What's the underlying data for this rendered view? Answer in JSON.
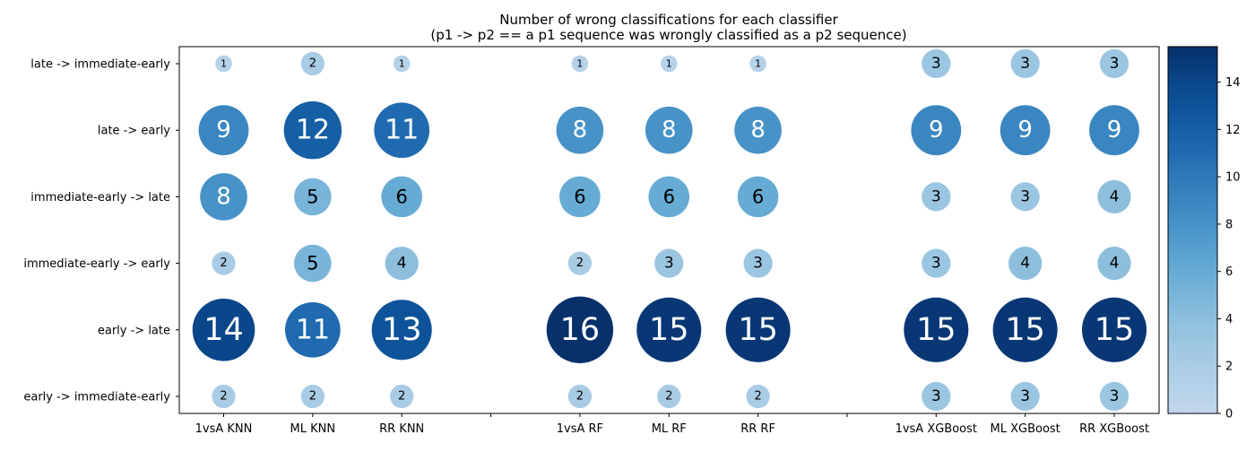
{
  "chart_data": {
    "type": "scatter",
    "title": "Number of wrong classifications for each classifier",
    "subtitle": "(p1 -> p2 == a p1 sequence was wrongly classified as a p2 sequence)",
    "x_categories": [
      "1vsA KNN",
      "ML KNN",
      "RR KNN",
      "",
      "1vsA RF",
      "ML RF",
      "RR RF",
      "",
      "1vsA XGBoost",
      "ML XGBoost",
      "RR XGBoost"
    ],
    "y_categories": [
      "late -> immediate-early",
      "late -> early",
      "immediate-early -> late",
      "immediate-early -> early",
      "early -> late",
      "early -> immediate-early"
    ],
    "series": [
      {
        "values": [
          1,
          2,
          1,
          null,
          1,
          1,
          1,
          null,
          3,
          3,
          3
        ]
      },
      {
        "values": [
          9,
          12,
          11,
          null,
          8,
          8,
          8,
          null,
          9,
          9,
          9
        ]
      },
      {
        "values": [
          8,
          5,
          6,
          null,
          6,
          6,
          6,
          null,
          3,
          3,
          4
        ]
      },
      {
        "values": [
          2,
          5,
          4,
          null,
          2,
          3,
          3,
          null,
          3,
          4,
          4
        ]
      },
      {
        "values": [
          14,
          11,
          13,
          null,
          16,
          15,
          15,
          null,
          15,
          15,
          15
        ]
      },
      {
        "values": [
          2,
          2,
          2,
          null,
          2,
          2,
          2,
          null,
          3,
          3,
          3
        ]
      }
    ],
    "colorbar": {
      "min": 0,
      "max": 15.5,
      "ticks": [
        0,
        2,
        4,
        6,
        8,
        10,
        12,
        14
      ],
      "colormap": "Blues"
    },
    "grid": false,
    "legend": "none"
  }
}
